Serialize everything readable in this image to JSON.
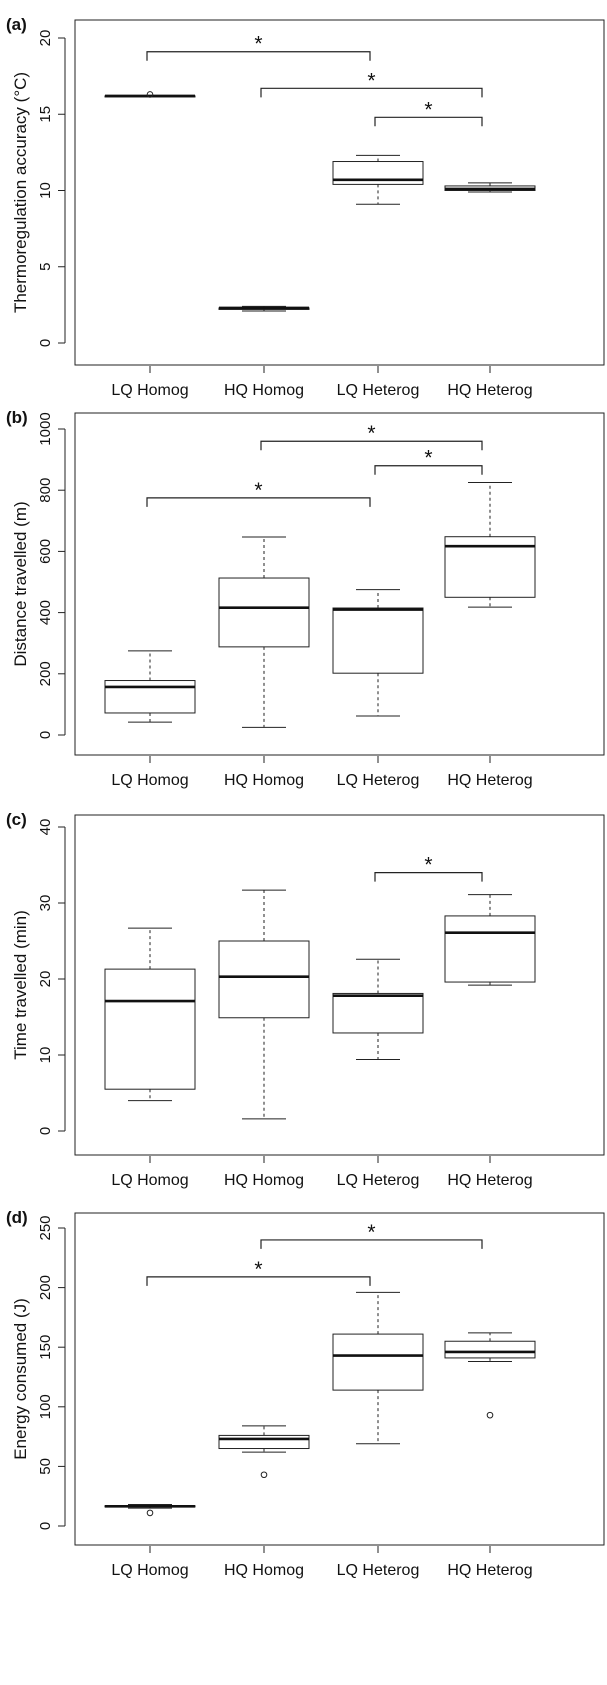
{
  "chart_data": [
    {
      "type": "box",
      "panel_label": "(a)",
      "ylabel": "Thermoregulation accuracy (°C)",
      "ylim": [
        0,
        20
      ],
      "yticks": [
        0,
        5,
        10,
        15,
        20
      ],
      "categories": [
        "LQ Homog",
        "HQ Homog",
        "LQ Heterog",
        "HQ Heterog"
      ],
      "boxes": [
        {
          "name": "LQ Homog",
          "min": 16.2,
          "q1": 16.2,
          "median": 16.2,
          "q3": 16.2,
          "max": 16.2,
          "outliers": [
            16.3
          ]
        },
        {
          "name": "HQ Homog",
          "min": 2.1,
          "q1": 2.2,
          "median": 2.3,
          "q3": 2.3,
          "max": 2.4,
          "outliers": []
        },
        {
          "name": "LQ Heterog",
          "min": 9.1,
          "q1": 10.4,
          "median": 10.7,
          "q3": 11.9,
          "max": 12.3,
          "outliers": []
        },
        {
          "name": "HQ Heterog",
          "min": 9.9,
          "q1": 10.0,
          "median": 10.1,
          "q3": 10.3,
          "max": 10.5,
          "outliers": []
        }
      ],
      "significance": [
        {
          "from": "LQ Homog",
          "to": "LQ Heterog",
          "y": 19.1,
          "label": "*"
        },
        {
          "from": "HQ Homog",
          "to": "HQ Heterog",
          "y": 16.7,
          "label": "*"
        },
        {
          "from": "LQ Heterog",
          "to": "HQ Heterog",
          "y": 14.8,
          "label": "*"
        }
      ]
    },
    {
      "type": "box",
      "panel_label": "(b)",
      "ylabel": "Distance travelled (m)",
      "ylim": [
        0,
        1000
      ],
      "yticks": [
        0,
        200,
        400,
        600,
        800,
        1000
      ],
      "categories": [
        "LQ Homog",
        "HQ Homog",
        "LQ Heterog",
        "HQ Heterog"
      ],
      "boxes": [
        {
          "name": "LQ Homog",
          "min": 42,
          "q1": 72,
          "median": 157,
          "q3": 178,
          "max": 275,
          "outliers": []
        },
        {
          "name": "HQ Homog",
          "min": 25,
          "q1": 288,
          "median": 416,
          "q3": 513,
          "max": 647,
          "outliers": []
        },
        {
          "name": "LQ Heterog",
          "min": 62,
          "q1": 202,
          "median": 410,
          "q3": 415,
          "max": 475,
          "outliers": []
        },
        {
          "name": "HQ Heterog",
          "min": 418,
          "q1": 450,
          "median": 617,
          "q3": 648,
          "max": 825,
          "outliers": []
        }
      ],
      "significance": [
        {
          "from": "HQ Homog",
          "to": "HQ Heterog",
          "y": 960,
          "label": "*"
        },
        {
          "from": "LQ Heterog",
          "to": "HQ Heterog",
          "y": 880,
          "label": "*"
        },
        {
          "from": "LQ Homog",
          "to": "LQ Heterog",
          "y": 775,
          "label": "*"
        }
      ]
    },
    {
      "type": "box",
      "panel_label": "(c)",
      "ylabel": "Time travelled (min)",
      "ylim": [
        0,
        40
      ],
      "yticks": [
        0,
        10,
        20,
        30,
        40
      ],
      "categories": [
        "LQ Homog",
        "HQ Homog",
        "LQ Heterog",
        "HQ Heterog"
      ],
      "boxes": [
        {
          "name": "LQ Homog",
          "min": 4.0,
          "q1": 5.5,
          "median": 17.1,
          "q3": 21.3,
          "max": 26.7,
          "outliers": []
        },
        {
          "name": "HQ Homog",
          "min": 1.6,
          "q1": 14.9,
          "median": 20.3,
          "q3": 25.0,
          "max": 31.7,
          "outliers": []
        },
        {
          "name": "LQ Heterog",
          "min": 9.4,
          "q1": 12.9,
          "median": 17.8,
          "q3": 18.1,
          "max": 22.6,
          "outliers": []
        },
        {
          "name": "HQ Heterog",
          "min": 19.2,
          "q1": 19.6,
          "median": 26.1,
          "q3": 28.3,
          "max": 31.1,
          "outliers": []
        }
      ],
      "significance": [
        {
          "from": "LQ Heterog",
          "to": "HQ Heterog",
          "y": 34.0,
          "label": "*"
        }
      ]
    },
    {
      "type": "box",
      "panel_label": "(d)",
      "ylabel": "Energy consumed (J)",
      "ylim": [
        0,
        250
      ],
      "yticks": [
        0,
        50,
        100,
        150,
        200,
        250
      ],
      "categories": [
        "LQ Homog",
        "HQ Homog",
        "LQ Heterog",
        "HQ Heterog"
      ],
      "boxes": [
        {
          "name": "LQ Homog",
          "min": 15,
          "q1": 16,
          "median": 16.5,
          "q3": 17,
          "max": 18,
          "outliers": [
            11
          ]
        },
        {
          "name": "HQ Homog",
          "min": 62,
          "q1": 65,
          "median": 73,
          "q3": 76,
          "max": 84,
          "outliers": [
            43
          ]
        },
        {
          "name": "LQ Heterog",
          "min": 69,
          "q1": 114,
          "median": 143,
          "q3": 161,
          "max": 196,
          "outliers": []
        },
        {
          "name": "HQ Heterog",
          "min": 138,
          "q1": 141,
          "median": 146,
          "q3": 155,
          "max": 162,
          "outliers": [
            93
          ]
        }
      ],
      "significance": [
        {
          "from": "HQ Homog",
          "to": "HQ Heterog",
          "y": 240,
          "label": "*"
        },
        {
          "from": "LQ Homog",
          "to": "LQ Heterog",
          "y": 209,
          "label": "*"
        }
      ]
    }
  ]
}
